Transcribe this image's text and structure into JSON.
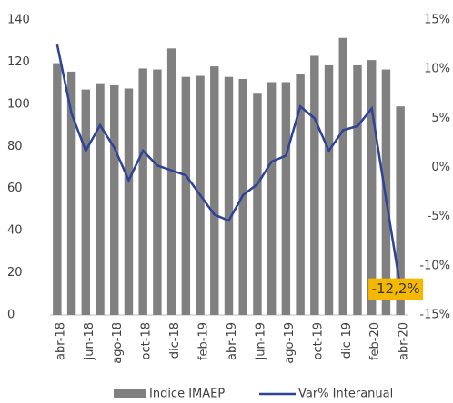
{
  "chart_data": {
    "type": "bar-line",
    "categories": [
      "abr-18",
      null,
      "jun-18",
      null,
      "ago-18",
      null,
      "oct-18",
      null,
      "dic-18",
      null,
      "feb-19",
      null,
      "abr-19",
      null,
      "jun-19",
      null,
      "ago-19",
      null,
      "oct-19",
      null,
      "dic-19",
      null,
      "feb-20",
      null,
      "abr-20"
    ],
    "series": [
      {
        "name": "Indice IMAEP",
        "type": "bar",
        "color": "#808080",
        "values": [
          119.5,
          115.5,
          107,
          110,
          109,
          107.5,
          117,
          116.5,
          126.5,
          113,
          113.5,
          118,
          113,
          112,
          105,
          110.5,
          110.5,
          114.5,
          123,
          118.5,
          131.5,
          118.5,
          121,
          116.5,
          99
        ]
      },
      {
        "name": "Var% Interanual",
        "type": "line",
        "axis": "y2",
        "color": "#2e4296",
        "values": [
          12.5,
          5.5,
          1.7,
          4.3,
          2.0,
          -1.3,
          1.7,
          0.2,
          -0.3,
          -0.8,
          -2.8,
          -4.8,
          -5.4,
          -2.8,
          -1.7,
          0.6,
          1.2,
          6.2,
          5.0,
          1.7,
          3.8,
          4.2,
          6.0,
          -3.2,
          -12.2
        ],
        "value_labels": [
          null,
          null,
          null,
          null,
          null,
          null,
          null,
          null,
          null,
          null,
          null,
          null,
          null,
          null,
          null,
          null,
          null,
          null,
          null,
          null,
          null,
          null,
          null,
          null,
          "-12,2%"
        ]
      }
    ],
    "ylim": [
      0,
      140
    ],
    "yticks": [
      0,
      20,
      40,
      60,
      80,
      100,
      120,
      140
    ],
    "y2lim": [
      -15,
      15
    ],
    "y2ticks": [
      {
        "value": -15,
        "label": "-15%"
      },
      {
        "value": -10,
        "label": "-10%"
      },
      {
        "value": -5,
        "label": "-5%"
      },
      {
        "value": 0,
        "label": "0%"
      },
      {
        "value": 5,
        "label": "5%"
      },
      {
        "value": 10,
        "label": "10%"
      },
      {
        "value": 15,
        "label": "15%"
      }
    ],
    "grid": false,
    "legend": "bottom"
  }
}
